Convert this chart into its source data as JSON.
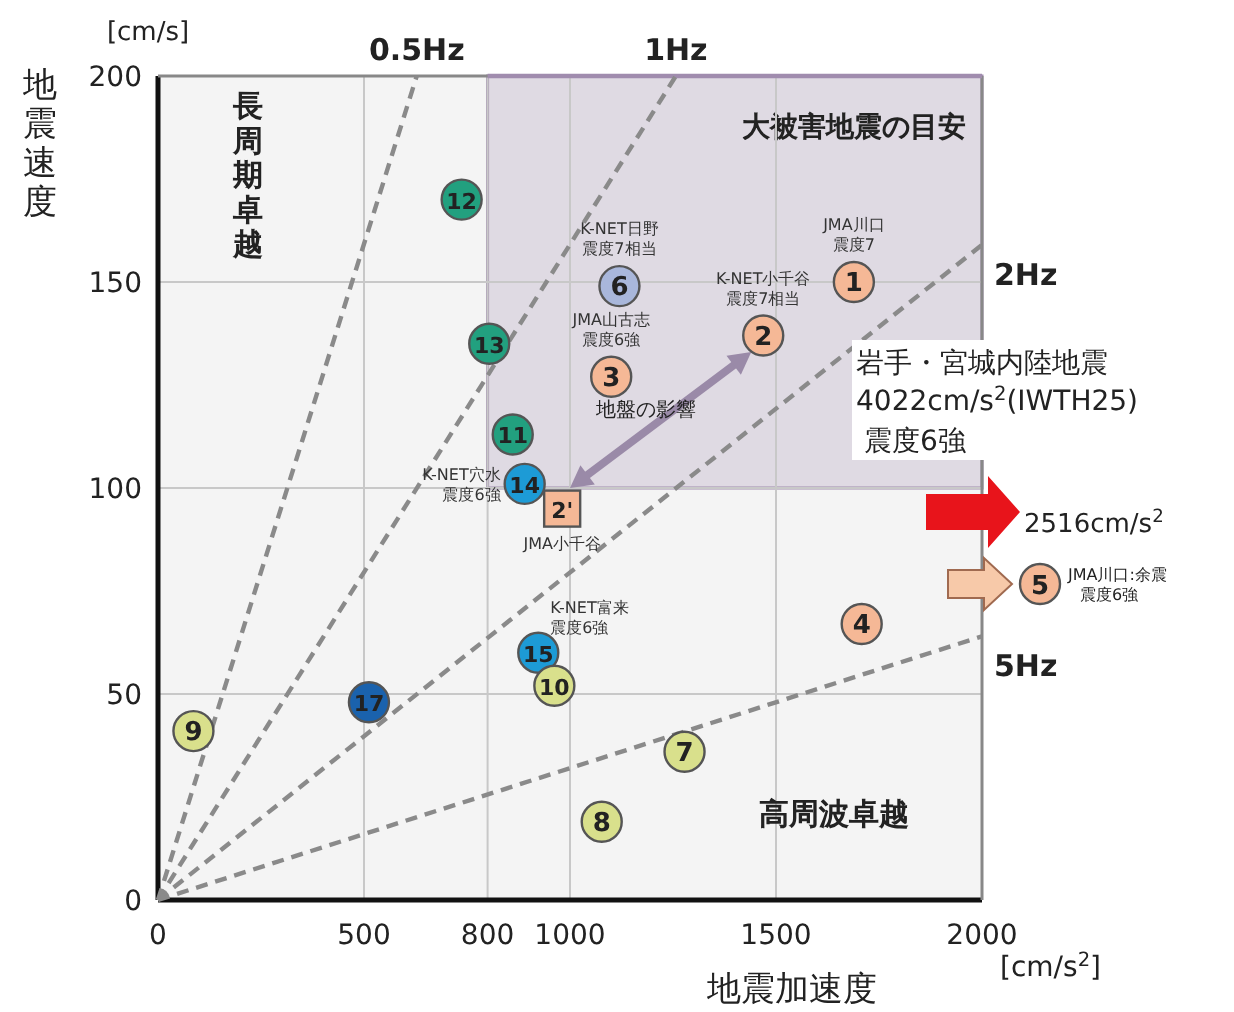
{
  "chart_data": {
    "type": "scatter",
    "xlabel": "地震加速度",
    "ylabel": "地震速度",
    "xlim": [
      0,
      2000
    ],
    "ylim": [
      0,
      200
    ],
    "xticks": [
      0,
      500,
      800,
      1000,
      1500,
      2000
    ],
    "yticks": [
      0,
      50,
      100,
      150,
      200
    ],
    "grid": true,
    "marker": "circle",
    "series": [
      {
        "type": "line",
        "name": "大被害地震の目安",
        "x": [
          800,
          2000
        ],
        "values": [
          200,
          200
        ],
        "lower": [
          100,
          100
        ],
        "upper": [
          200,
          200
        ],
        "color": "#a08cae",
        "line_style": "solid",
        "marker": "none"
      },
      {
        "type": "line",
        "name": "0.5Hz",
        "x": [
          0,
          628
        ],
        "values": [
          0,
          200
        ],
        "color": "#8a8a8a",
        "line_style": "dashed",
        "marker": "none"
      },
      {
        "type": "line",
        "name": "1Hz",
        "x": [
          0,
          1257
        ],
        "values": [
          0,
          200
        ],
        "color": "#8a8a8a",
        "line_style": "dashed",
        "marker": "none"
      },
      {
        "type": "line",
        "name": "2Hz",
        "x": [
          0,
          2000
        ],
        "values": [
          0,
          159
        ],
        "color": "#8a8a8a",
        "line_style": "dashed",
        "marker": "none"
      },
      {
        "type": "line",
        "name": "5Hz",
        "x": [
          0,
          2000
        ],
        "values": [
          0,
          64
        ],
        "color": "#8a8a8a",
        "line_style": "dashed",
        "marker": "none"
      },
      {
        "x": [
          1689,
          1469,
          1100,
          1708
        ],
        "values": [
          150,
          137,
          127,
          67
        ],
        "color": "#f5b896"
      },
      {
        "x": [
          981
        ],
        "values": [
          95
        ],
        "color": "#f5b896",
        "marker": "square"
      },
      {
        "x": [
          1120
        ],
        "values": [
          149
        ],
        "color": "#a9b7db"
      },
      {
        "x": [
          737,
          804,
          861
        ],
        "values": [
          170,
          135,
          113
        ],
        "color": "#22a07f"
      },
      {
        "x": [
          890,
          923
        ],
        "values": [
          101,
          60
        ],
        "color": "#1d9bd6"
      },
      {
        "x": [
          512
        ],
        "values": [
          48
        ],
        "color": "#1a62ad"
      },
      {
        "x": [
          86,
          962,
          1077,
          1278
        ],
        "values": [
          41,
          52,
          19,
          36
        ],
        "color": "#d9e08c"
      }
    ],
    "annotations": [
      "[cm/s]",
      "[cm/s$^{2}$]",
      "長周期卓越",
      "高周波卓越",
      "地盤の影響",
      "岩手・宮城内陸地震",
      "4022cm/s$^{2}$(IWTH25)",
      "震度6強",
      "2516cm/s$^{2}$",
      "5",
      "JMA川口:余震",
      "震度6強",
      {
        "text": "1",
        "x": 1689,
        "y": 150
      },
      {
        "text": "JMA川口",
        "x": 1689,
        "y": 150
      },
      {
        "text": "震度7",
        "x": 1689,
        "y": 150
      },
      {
        "text": "2",
        "x": 1469,
        "y": 137
      },
      {
        "text": "K-NET小千谷",
        "x": 1469,
        "y": 137
      },
      {
        "text": "震度7相当",
        "x": 1469,
        "y": 137
      },
      {
        "text": "3",
        "x": 1100,
        "y": 127
      },
      {
        "text": "JMA山古志",
        "x": 1100,
        "y": 127
      },
      {
        "text": "震度6強",
        "x": 1100,
        "y": 127
      },
      {
        "text": "4",
        "x": 1708,
        "y": 67
      },
      {
        "text": "2'",
        "x": 981,
        "y": 95
      },
      {
        "text": "JMA小千谷",
        "x": 981,
        "y": 95
      },
      {
        "text": "6",
        "x": 1120,
        "y": 149
      },
      {
        "text": "K-NET日野",
        "x": 1120,
        "y": 149
      },
      {
        "text": "震度7相当",
        "x": 1120,
        "y": 149
      },
      {
        "text": "12",
        "x": 737,
        "y": 170
      },
      {
        "text": "13",
        "x": 804,
        "y": 135
      },
      {
        "text": "11",
        "x": 861,
        "y": 113
      },
      {
        "text": "14",
        "x": 890,
        "y": 101
      },
      {
        "text": "K-NET穴水",
        "x": 890,
        "y": 101
      },
      {
        "text": "震度6強",
        "x": 890,
        "y": 101
      },
      {
        "text": "15",
        "x": 923,
        "y": 60
      },
      {
        "text": "K-NET富来",
        "x": 923,
        "y": 60
      },
      {
        "text": "震度6強",
        "x": 923,
        "y": 60
      },
      {
        "text": "17",
        "x": 512,
        "y": 48
      },
      {
        "text": "9",
        "x": 86,
        "y": 41
      },
      {
        "text": "10",
        "x": 962,
        "y": 52
      },
      {
        "text": "8",
        "x": 1077,
        "y": 19
      },
      {
        "text": "7",
        "x": 1278,
        "y": 36
      }
    ]
  }
}
